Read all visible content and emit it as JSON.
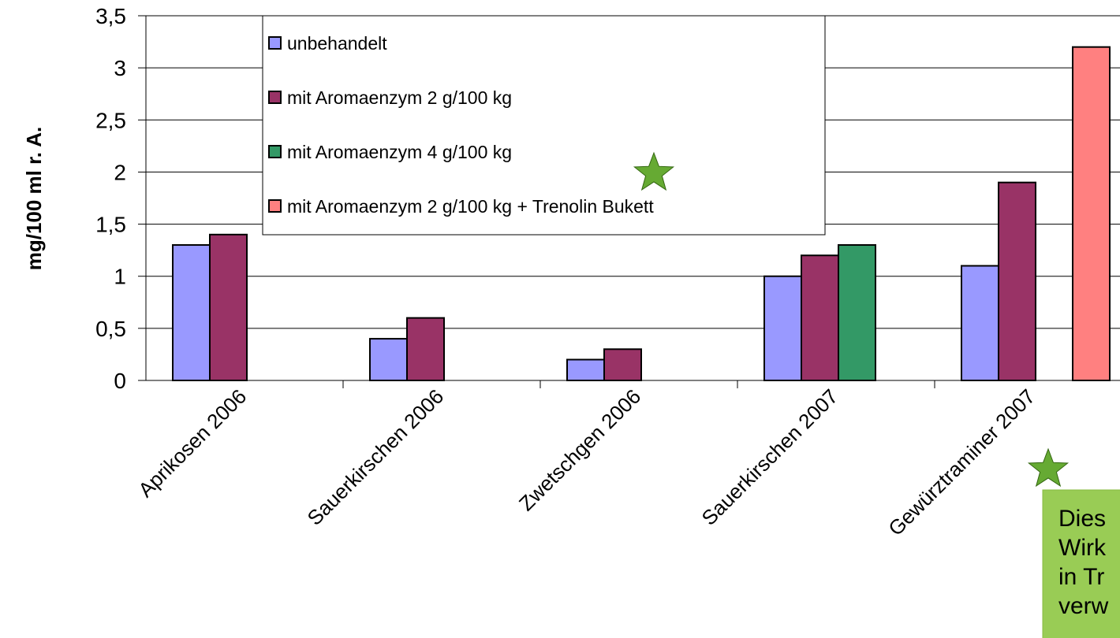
{
  "chart_data": {
    "type": "bar",
    "ylabel": "mg/100 ml r. A.",
    "categories": [
      "Aprikosen 2006",
      "Sauerkirschen 2006",
      "Zwetschgen 2006",
      "Sauerkirschen 2007",
      "Gewürztraminer 2007"
    ],
    "series": [
      {
        "name": "unbehandelt",
        "color": "#9999ff",
        "values": [
          1.3,
          0.4,
          0.2,
          1.0,
          1.1
        ]
      },
      {
        "name": "mit Aromaenzym 2 g/100 kg",
        "color": "#993366",
        "values": [
          1.4,
          0.6,
          0.3,
          1.2,
          1.9
        ]
      },
      {
        "name": "mit Aromaenzym 4 g/100 kg",
        "color": "#339966",
        "values": [
          null,
          null,
          null,
          1.3,
          null
        ]
      },
      {
        "name": "mit Aromaenzym 2 g/100 kg + Trenolin Bukett",
        "color": "#ff8080",
        "values": [
          null,
          null,
          null,
          null,
          3.2
        ]
      }
    ],
    "ylim": [
      0,
      3.5
    ],
    "yticks": [
      0,
      {
        "value": 0.5,
        "label": "0,5"
      },
      1,
      {
        "value": 1.5,
        "label": "1,5"
      },
      2,
      {
        "value": 2.5,
        "label": "2,5"
      },
      3,
      {
        "value": 3.5,
        "label": "3,5"
      }
    ],
    "grid": true,
    "annotation": [
      "Dies",
      "Wirk",
      "in Tr",
      "verw"
    ]
  }
}
